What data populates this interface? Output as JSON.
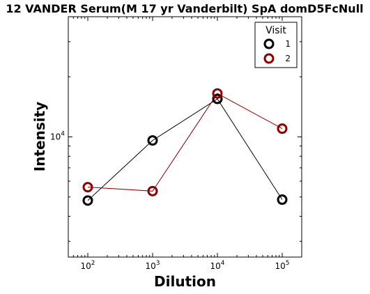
{
  "chart_data": {
    "type": "line",
    "title": "12 VANDER Serum(M 17 yr Vanderbilt) SpA domD5FcNull",
    "xlabel": "Dilution",
    "ylabel": "Intensity",
    "x_scale": "log",
    "y_scale": "log",
    "xlim": [
      50,
      200000
    ],
    "ylim": [
      2500,
      40000
    ],
    "x": [
      100,
      1000,
      10000,
      100000
    ],
    "x_ticks": [
      {
        "base": "10",
        "exp": "2"
      },
      {
        "base": "10",
        "exp": "3"
      },
      {
        "base": "10",
        "exp": "4"
      },
      {
        "base": "10",
        "exp": "5"
      }
    ],
    "y_ticks": [
      {
        "value": 10000,
        "base": "10",
        "exp": "4"
      }
    ],
    "legend": {
      "title": "Visit",
      "position": "top-right"
    },
    "series": [
      {
        "name": "1",
        "color": "#000000",
        "values": [
          4800,
          9600,
          15500,
          4850
        ]
      },
      {
        "name": "2",
        "color": "#8b0000",
        "values": [
          5600,
          5350,
          16500,
          11000
        ]
      }
    ],
    "grid": false
  }
}
